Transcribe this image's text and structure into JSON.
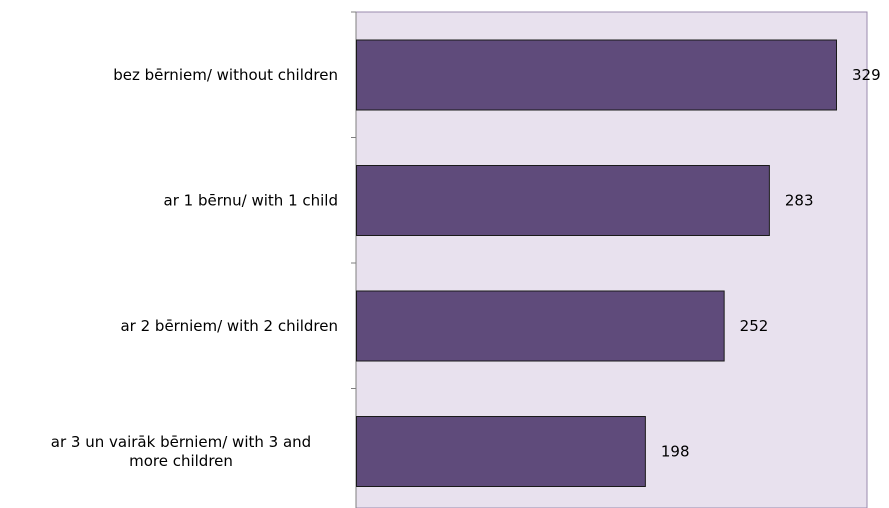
{
  "chart_data": {
    "type": "bar",
    "orientation": "horizontal",
    "categories": [
      [
        "bez bērniem/ without children"
      ],
      [
        "ar 1 bērnu/ with 1 child"
      ],
      [
        "ar 2 bērniem/ with 2 children"
      ],
      [
        "ar 3 un vairāk bērniem/ with 3 and",
        "more children"
      ]
    ],
    "values": [
      329,
      283,
      252,
      198
    ],
    "data_labels": [
      "329",
      "283",
      "252",
      "198"
    ],
    "xlim": [
      0,
      350
    ],
    "grid": false,
    "legend": "none",
    "colors": {
      "bar_fill": "#5f4b7b",
      "bar_stroke": "#1a1a1a",
      "plot_background": "#e8e1ee",
      "plot_border": "#9a8aad",
      "axis": "#7f7f7f"
    }
  }
}
